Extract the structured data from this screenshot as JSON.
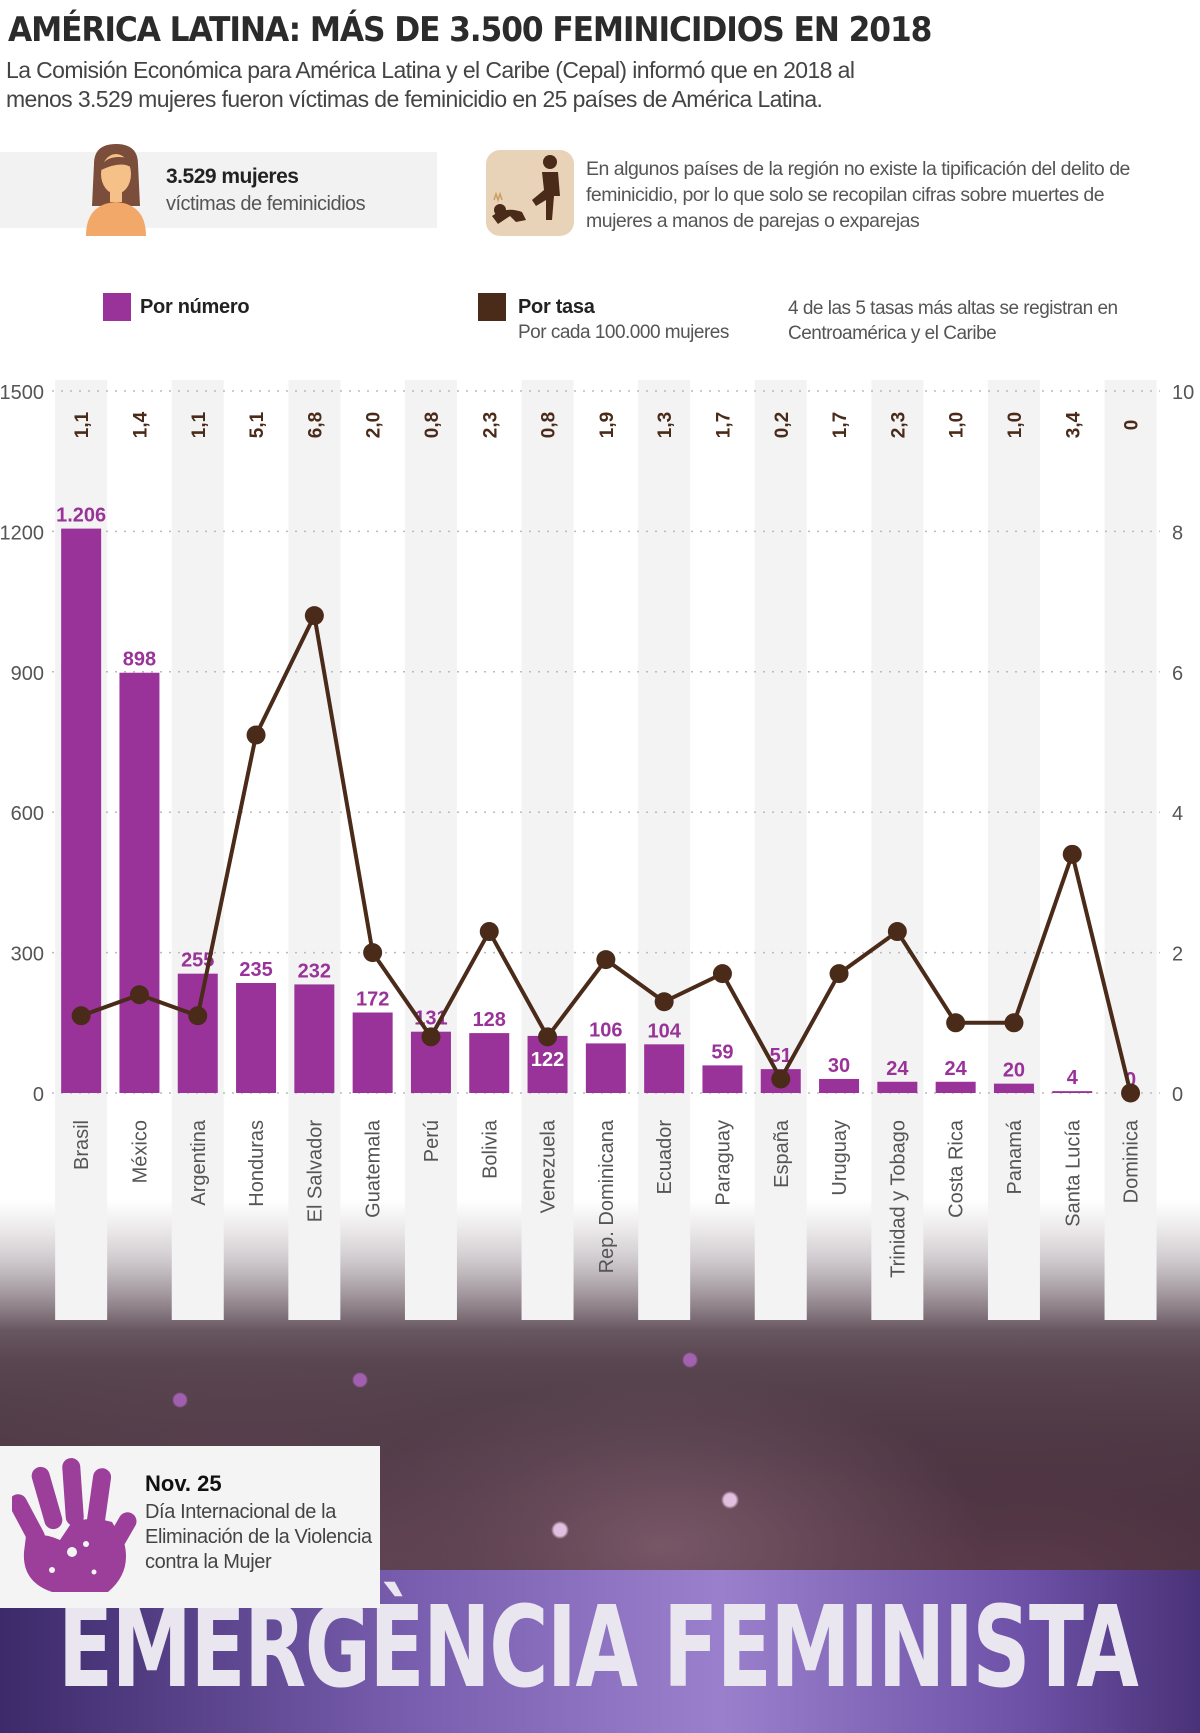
{
  "header": {
    "title": "AMÉRICA LATINA: MÁS DE 3.500 FEMINICIDIOS EN 2018",
    "subtitle": "La Comisión Económica para América Latina y el Caribe (Cepal) informó que en 2018 al menos 3.529 mujeres fueron víctimas de feminicidio en 25 países de América Latina."
  },
  "stat": {
    "icon": "woman-icon",
    "number": "3.529 mujeres",
    "label": "víctimas de feminicidios"
  },
  "note": {
    "icon": "violence-icon",
    "text": "En algunos países de la región no existe la tipificación del delito de feminicidio, por lo que solo se recopilan cifras sobre muertes de mujeres a manos de parejas o exparejas"
  },
  "legend": {
    "number_label": "Por número",
    "rate_label": "Por tasa",
    "rate_sub": "Por cada 100.000 mujeres",
    "note": "4 de las 5 tasas más altas se registran en Centroamérica y el Caribe"
  },
  "colors": {
    "number": "#993399",
    "rate": "#4a2a18",
    "band": "#f3f3f3",
    "grid": "#bbbbbb"
  },
  "chart_data": {
    "type": "bar+line",
    "title": "AMÉRICA LATINA: MÁS DE 3.500 FEMINICIDIOS EN 2018",
    "categories": [
      "Brasil",
      "México",
      "Argentina",
      "Honduras",
      "El Salvador",
      "Guatemala",
      "Perú",
      "Bolivia",
      "Venezuela",
      "Rep. Dominicana",
      "Ecuador",
      "Paraguay",
      "España",
      "Uruguay",
      "Trinidad y Tobago",
      "Costa Rica",
      "Panamá",
      "Santa Lucía",
      "Dominica"
    ],
    "series": [
      {
        "name": "Por número",
        "type": "bar",
        "axis": "left",
        "values": [
          1206,
          898,
          255,
          235,
          232,
          172,
          131,
          128,
          122,
          106,
          104,
          59,
          51,
          30,
          24,
          24,
          20,
          4,
          0
        ],
        "labels": [
          "1.206",
          "898",
          "255",
          "235",
          "232",
          "172",
          "131",
          "128",
          "122",
          "106",
          "104",
          "59",
          "51",
          "30",
          "24",
          "24",
          "20",
          "4",
          "0"
        ]
      },
      {
        "name": "Por tasa (por cada 100.000 mujeres)",
        "type": "line",
        "axis": "right",
        "values": [
          1.1,
          1.4,
          1.1,
          5.1,
          6.8,
          2.0,
          0.8,
          2.3,
          0.8,
          1.9,
          1.3,
          1.7,
          0.2,
          1.7,
          2.3,
          1.0,
          1.0,
          3.4,
          0
        ],
        "labels": [
          "1,1",
          "1,4",
          "1,1",
          "5,1",
          "6,8",
          "2,0",
          "0,8",
          "2,3",
          "0,8",
          "1,9",
          "1,3",
          "1,7",
          "0,2",
          "1,7",
          "2,3",
          "1,0",
          "1,0",
          "3,4",
          "0"
        ]
      }
    ],
    "y_left": {
      "range": [
        0,
        1500
      ],
      "ticks": [
        "0",
        "300",
        "600",
        "900",
        "1200",
        "1500"
      ]
    },
    "y_right": {
      "range": [
        0,
        10
      ],
      "ticks": [
        "0",
        "2",
        "4",
        "6",
        "8",
        "10"
      ]
    },
    "grid": true,
    "legend_position": "top"
  },
  "footer": {
    "date": "Nov. 25",
    "text": "Día Internacional de la Eliminación de la Violencia contra la Mujer",
    "hand_icon": "hand-print-icon",
    "banner_text": "EMERGÈNCIA FEMINISTA"
  }
}
